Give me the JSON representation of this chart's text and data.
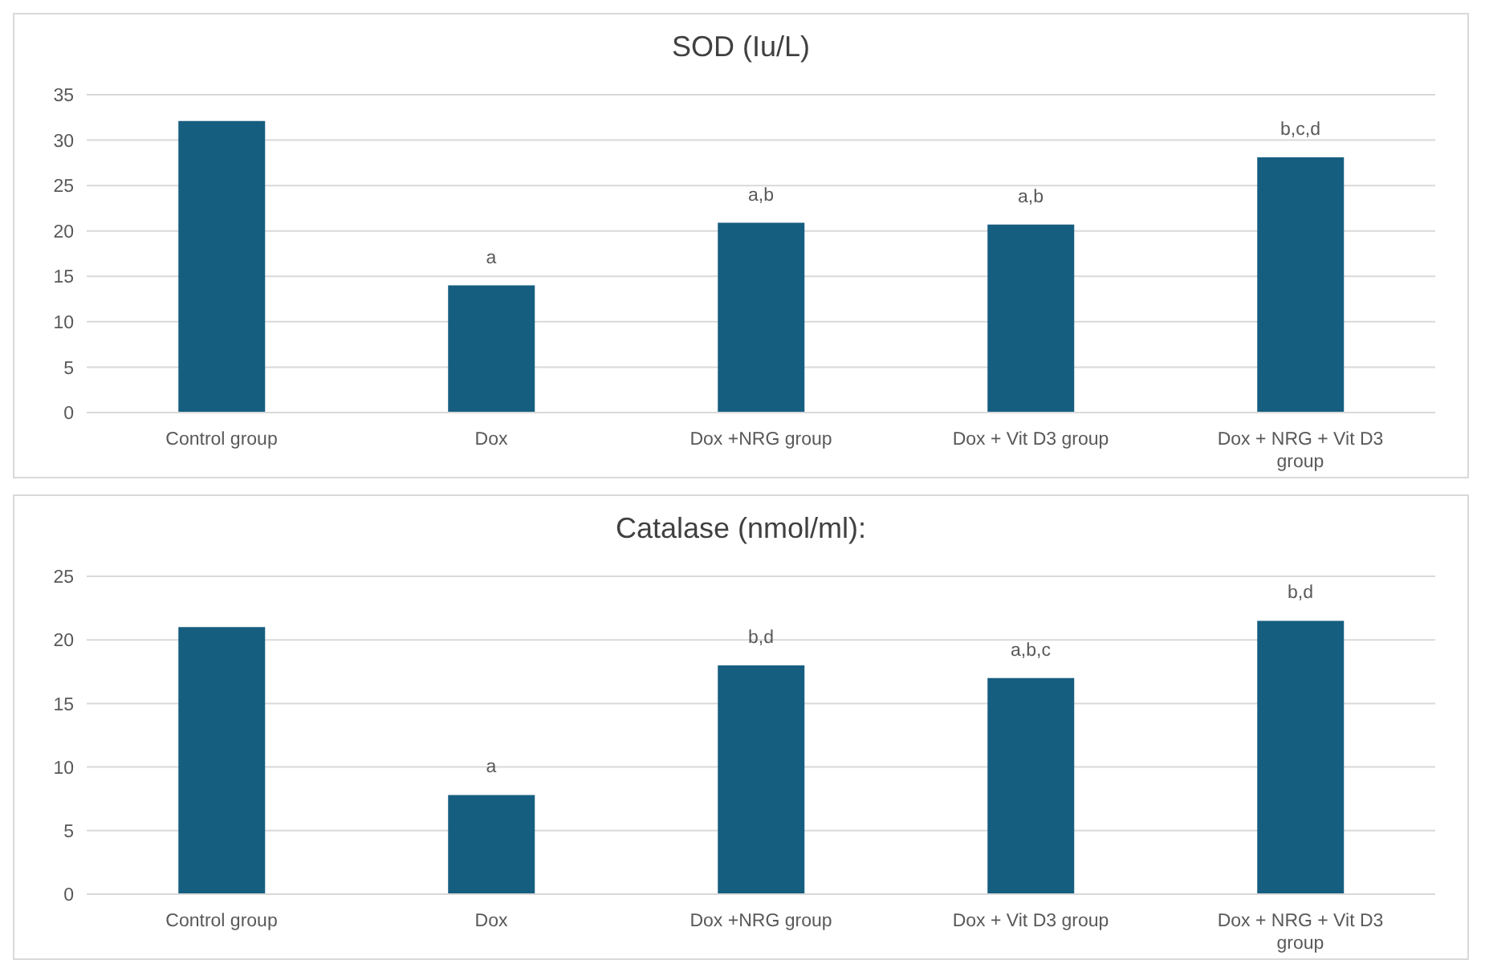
{
  "chart_data": [
    {
      "type": "bar",
      "title": "SOD (Iu/L)",
      "categories": [
        "Control group",
        "Dox",
        "Dox +NRG group",
        "Dox + Vit D3 group",
        "Dox + NRG + Vit D3 group"
      ],
      "values": [
        32.1,
        14.0,
        20.9,
        20.7,
        28.1
      ],
      "color": "#165e80",
      "ylim": [
        0,
        35
      ],
      "yticks": [
        0,
        5,
        10,
        15,
        20,
        25,
        30,
        35
      ],
      "grid": "y",
      "annotations": [
        {
          "text": "a",
          "x": "Dox",
          "y": 14.0
        },
        {
          "text": "a,b",
          "x": "Dox +NRG group",
          "y": 20.9
        },
        {
          "text": "a,b",
          "x": "Dox + Vit D3 group",
          "y": 20.7
        },
        {
          "text": "b,c,d",
          "x": "Dox + NRG + Vit D3 group",
          "y": 28.1
        }
      ]
    },
    {
      "type": "bar",
      "title": "Catalase (nmol/ml):",
      "categories": [
        "Control group",
        "Dox",
        "Dox +NRG group",
        "Dox + Vit D3 group",
        "Dox + NRG + Vit D3 group"
      ],
      "values": [
        21.0,
        7.8,
        18.0,
        17.0,
        21.5
      ],
      "color": "#165e80",
      "ylim": [
        0,
        25
      ],
      "yticks": [
        0,
        5,
        10,
        15,
        20,
        25
      ],
      "grid": "y",
      "annotations": [
        {
          "text": "a",
          "x": "Dox",
          "y": 7.8
        },
        {
          "text": "b,d",
          "x": "Dox +NRG group",
          "y": 18.0
        },
        {
          "text": "a,b,c",
          "x": "Dox + Vit D3 group",
          "y": 17.0
        },
        {
          "text": "b,d",
          "x": "Dox + NRG + Vit D3 group",
          "y": 21.5
        }
      ]
    }
  ]
}
